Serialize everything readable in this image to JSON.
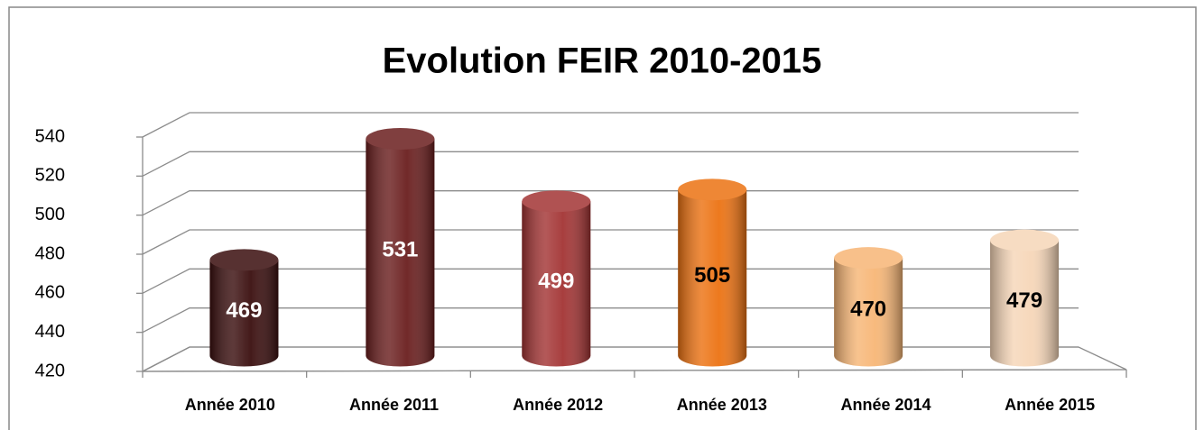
{
  "chart_data": {
    "type": "bar3d",
    "title": "Evolution FEIR 2010-2015",
    "categories": [
      "Année 2010",
      "Année 2011",
      "Année 2012",
      "Année 2013",
      "Année 2014",
      "Année 2015"
    ],
    "values": [
      469,
      531,
      499,
      505,
      470,
      479
    ],
    "colors": [
      "#3a0e0e",
      "#6a1e1e",
      "#a33434",
      "#ec7212",
      "#f7b676",
      "#f6d6b8"
    ],
    "label_colors": [
      "#ffffff",
      "#ffffff",
      "#ffffff",
      "#000000",
      "#000000",
      "#000000"
    ],
    "ylim": [
      420,
      540
    ],
    "yticks": [
      420,
      440,
      460,
      480,
      500,
      520,
      540
    ],
    "grid": true
  }
}
